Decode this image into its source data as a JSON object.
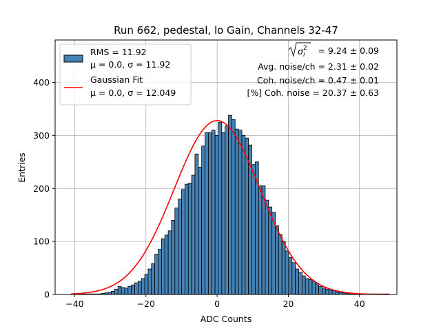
{
  "chart_data": {
    "type": "bar",
    "title": "Run 662, pedestal, lo Gain, Channels 32-47",
    "xlabel": "ADC Counts",
    "ylabel": "Entries",
    "xlim": [
      -45.5,
      50.5
    ],
    "ylim": [
      0,
      480
    ],
    "xticks": [
      -40,
      -20,
      0,
      20,
      40
    ],
    "yticks": [
      0,
      100,
      200,
      300,
      400
    ],
    "tick_labels": {
      "x": [
        "−40",
        "−20",
        "0",
        "20",
        "40"
      ],
      "y": [
        "0",
        "100",
        "200",
        "300",
        "400"
      ]
    },
    "grid": true,
    "bin_edge_start": -41,
    "bin_width": 0.94,
    "bin_counts": [
      1,
      1,
      1,
      1,
      1,
      1,
      1,
      1,
      1,
      2,
      3,
      4,
      6,
      10,
      15,
      13,
      12,
      15,
      18,
      22,
      25,
      30,
      38,
      48,
      58,
      76,
      85,
      105,
      112,
      120,
      140,
      163,
      180,
      198,
      208,
      210,
      225,
      265,
      240,
      280,
      305,
      305,
      310,
      300,
      325,
      305,
      318,
      338,
      330,
      312,
      310,
      300,
      295,
      282,
      245,
      250,
      205,
      205,
      178,
      165,
      155,
      130,
      113,
      100,
      82,
      70,
      60,
      48,
      42,
      35,
      30,
      28,
      25,
      20,
      15,
      12,
      10,
      8,
      7,
      5,
      4,
      3,
      2,
      2,
      1,
      1,
      1,
      1,
      1,
      1,
      1,
      1,
      1,
      1,
      1
    ],
    "series": [
      {
        "name": "histogram",
        "label_lines": [
          "RMS = 11.92",
          "μ = 0.0, σ = 11.92"
        ],
        "color": "#4682b4",
        "edge_color": "#000000"
      },
      {
        "name": "gaussian_fit",
        "label_lines": [
          "Gaussian Fit",
          "μ = 0.0, σ = 12.049"
        ],
        "color": "#ff0000",
        "mu": 0.0,
        "sigma": 12.049,
        "amplitude": 328
      }
    ],
    "legend_position": "top-left",
    "annotations": {
      "sqrt_sigma_value": "= 9.24 ± 0.09",
      "avg_noise": "Avg. noise/ch = 2.31 ± 0.02",
      "coh_noise": "Coh. noise/ch = 0.47 ± 0.01",
      "pct_coh_noise": "[%] Coh. noise = 20.37 ± 0.63"
    }
  }
}
